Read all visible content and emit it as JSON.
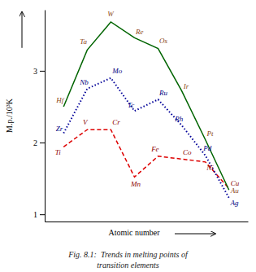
{
  "chart_data": {
    "type": "line",
    "title": "Fig. 8.1:  Trends in melting points of",
    "subtitle": "transition elements",
    "xlabel": "Atomic number",
    "ylabel": "M.p./10³K",
    "x": [
      1,
      2,
      3,
      4,
      5,
      6,
      7,
      8
    ],
    "xlim": [
      0.2,
      8.8
    ],
    "ylim": [
      0.9,
      3.85
    ],
    "yticks": [
      1,
      2,
      3
    ],
    "tick_labels": "y",
    "grid": false,
    "series": [
      {
        "labels": [
          "Ti",
          "V",
          "Cr",
          "Mn",
          "Fe",
          "Co",
          "Ni",
          "Cu"
        ],
        "color": "#dd0000",
        "label_color": "#8B0000",
        "line_style": "dashed",
        "values": [
          1.94,
          2.18,
          2.18,
          1.52,
          1.81,
          1.77,
          1.73,
          1.36
        ]
      },
      {
        "labels": [
          "Zr",
          "Nb",
          "Mo",
          "Tc",
          "Ru",
          "Rh",
          "Pd",
          "Ag"
        ],
        "color": "#000099",
        "label_color": "#000080",
        "line_style": "dotted",
        "values": [
          2.13,
          2.75,
          2.9,
          2.44,
          2.6,
          2.24,
          1.82,
          1.23
        ]
      },
      {
        "labels": [
          "Hf",
          "Ta",
          "W",
          "Re",
          "Os",
          "Ir",
          "Pt",
          "Au"
        ],
        "color": "#006400",
        "label_color": "#8B4513",
        "line_style": "solid",
        "values": [
          2.5,
          3.29,
          3.68,
          3.46,
          3.31,
          2.72,
          2.04,
          1.34
        ]
      }
    ]
  }
}
